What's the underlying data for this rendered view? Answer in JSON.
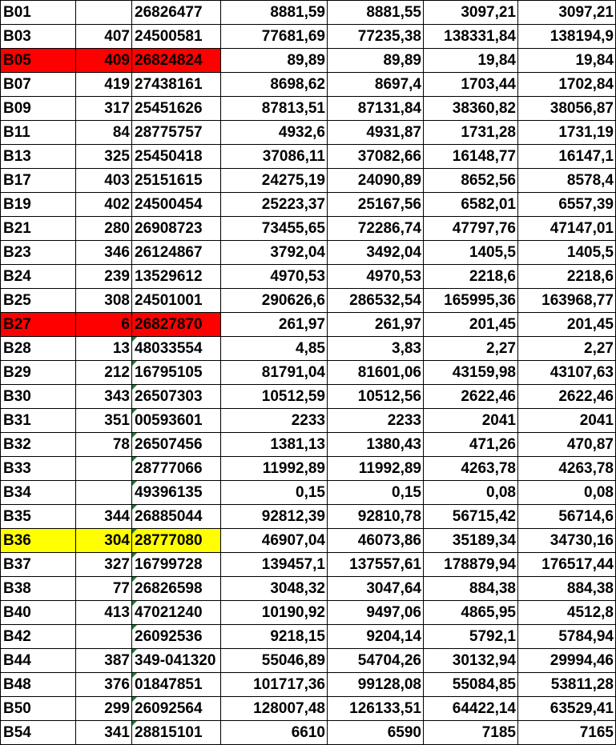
{
  "colors": {
    "red": "#ff0000",
    "yellow": "#ffff00",
    "error_indicator": "#1a7f2e"
  },
  "rows": [
    {
      "code": "B01",
      "num": "",
      "id": "26826477",
      "v1": "8881,59",
      "v2": "8881,55",
      "v3": "3097,21",
      "v4": "3097,21",
      "highlight": "",
      "flag": false
    },
    {
      "code": "B03",
      "num": "407",
      "id": "24500581",
      "v1": "77681,69",
      "v2": "77235,38",
      "v3": "138331,84",
      "v4": "138194,9",
      "highlight": "",
      "flag": false
    },
    {
      "code": "B05",
      "num": "409",
      "id": "26824824",
      "v1": "89,89",
      "v2": "89,89",
      "v3": "19,84",
      "v4": "19,84",
      "highlight": "red",
      "flag": false
    },
    {
      "code": "B07",
      "num": "419",
      "id": "27438161",
      "v1": "8698,62",
      "v2": "8697,4",
      "v3": "1703,44",
      "v4": "1702,84",
      "highlight": "",
      "flag": false
    },
    {
      "code": "B09",
      "num": "317",
      "id": "25451626",
      "v1": "87813,51",
      "v2": "87131,84",
      "v3": "38360,82",
      "v4": "38056,87",
      "highlight": "",
      "flag": false
    },
    {
      "code": "B11",
      "num": "84",
      "id": "28775757",
      "v1": "4932,6",
      "v2": "4931,87",
      "v3": "1731,28",
      "v4": "1731,19",
      "highlight": "",
      "flag": false
    },
    {
      "code": "B13",
      "num": "325",
      "id": "25450418",
      "v1": "37086,11",
      "v2": "37082,66",
      "v3": "16148,77",
      "v4": "16147,1",
      "highlight": "",
      "flag": false
    },
    {
      "code": "B17",
      "num": "403",
      "id": "25151615",
      "v1": "24275,19",
      "v2": "24090,89",
      "v3": "8652,56",
      "v4": "8578,4",
      "highlight": "",
      "flag": false
    },
    {
      "code": "B19",
      "num": "402",
      "id": "24500454",
      "v1": "25223,37",
      "v2": "25167,56",
      "v3": "6582,01",
      "v4": "6557,39",
      "highlight": "",
      "flag": false
    },
    {
      "code": "B21",
      "num": "280",
      "id": "26908723",
      "v1": "73455,65",
      "v2": "72286,74",
      "v3": "47797,76",
      "v4": "47147,01",
      "highlight": "",
      "flag": false
    },
    {
      "code": "B23",
      "num": "346",
      "id": "26124867",
      "v1": "3792,04",
      "v2": "3492,04",
      "v3": "1405,5",
      "v4": "1405,5",
      "highlight": "",
      "flag": false
    },
    {
      "code": "B24",
      "num": "239",
      "id": "13529612",
      "v1": "4970,53",
      "v2": "4970,53",
      "v3": "2218,6",
      "v4": "2218,6",
      "highlight": "",
      "flag": false
    },
    {
      "code": "B25",
      "num": "308",
      "id": "24501001",
      "v1": "290626,6",
      "v2": "286532,54",
      "v3": "165995,36",
      "v4": "163968,77",
      "highlight": "",
      "flag": false
    },
    {
      "code": "B27",
      "num": "6",
      "id": "26827870",
      "v1": "261,97",
      "v2": "261,97",
      "v3": "201,45",
      "v4": "201,45",
      "highlight": "red",
      "flag": false
    },
    {
      "code": "B28",
      "num": "13",
      "id": "48033554",
      "v1": "4,85",
      "v2": "3,83",
      "v3": "2,27",
      "v4": "2,27",
      "highlight": "",
      "flag": true
    },
    {
      "code": "B29",
      "num": "212",
      "id": "16795105",
      "v1": "81791,04",
      "v2": "81601,06",
      "v3": "43159,98",
      "v4": "43107,63",
      "highlight": "",
      "flag": true
    },
    {
      "code": "B30",
      "num": "343",
      "id": "26507303",
      "v1": "10512,59",
      "v2": "10512,56",
      "v3": "2622,46",
      "v4": "2622,46",
      "highlight": "",
      "flag": true
    },
    {
      "code": "B31",
      "num": "351",
      "id": "00593601",
      "v1": "2233",
      "v2": "2233",
      "v3": "2041",
      "v4": "2041",
      "highlight": "",
      "flag": true
    },
    {
      "code": "B32",
      "num": "78",
      "id": "26507456",
      "v1": "1381,13",
      "v2": "1380,43",
      "v3": "471,26",
      "v4": "470,87",
      "highlight": "",
      "flag": true
    },
    {
      "code": "B33",
      "num": "",
      "id": "28777066",
      "v1": "11992,89",
      "v2": "11992,89",
      "v3": "4263,78",
      "v4": "4263,78",
      "highlight": "",
      "flag": true
    },
    {
      "code": "B34",
      "num": "",
      "id": "49396135",
      "v1": "0,15",
      "v2": "0,15",
      "v3": "0,08",
      "v4": "0,08",
      "highlight": "",
      "flag": true
    },
    {
      "code": "B35",
      "num": "344",
      "id": "26885044",
      "v1": "92812,39",
      "v2": "92810,78",
      "v3": "56715,42",
      "v4": "56714,6",
      "highlight": "",
      "flag": true
    },
    {
      "code": "B36",
      "num": "304",
      "id": "28777080",
      "v1": "46907,04",
      "v2": "46073,86",
      "v3": "35189,34",
      "v4": "34730,16",
      "highlight": "yellow",
      "flag": true
    },
    {
      "code": "B37",
      "num": "327",
      "id": "16799728",
      "v1": "139457,1",
      "v2": "137557,61",
      "v3": "178879,94",
      "v4": "176517,44",
      "highlight": "",
      "flag": true
    },
    {
      "code": "B38",
      "num": "77",
      "id": "26826598",
      "v1": "3048,32",
      "v2": "3047,64",
      "v3": "884,38",
      "v4": "884,38",
      "highlight": "",
      "flag": true
    },
    {
      "code": "B40",
      "num": "413",
      "id": "47021240",
      "v1": "10190,92",
      "v2": "9497,06",
      "v3": "4865,95",
      "v4": "4512,8",
      "highlight": "",
      "flag": true
    },
    {
      "code": "B42",
      "num": "",
      "id": "26092536",
      "v1": "9218,15",
      "v2": "9204,14",
      "v3": "5792,1",
      "v4": "5784,94",
      "highlight": "",
      "flag": true
    },
    {
      "code": "B44",
      "num": "387",
      "id": "349-041320",
      "v1": "55046,89",
      "v2": "54704,26",
      "v3": "30132,94",
      "v4": "29994,46",
      "highlight": "",
      "flag": true
    },
    {
      "code": "B48",
      "num": "376",
      "id": "01847851",
      "v1": "101717,36",
      "v2": "99128,08",
      "v3": "55084,85",
      "v4": "53811,28",
      "highlight": "",
      "flag": true
    },
    {
      "code": "B50",
      "num": "299",
      "id": "26092564",
      "v1": "128007,48",
      "v2": "126133,51",
      "v3": "64422,14",
      "v4": "63529,41",
      "highlight": "",
      "flag": true
    },
    {
      "code": "B54",
      "num": "341",
      "id": "28815101",
      "v1": "6610",
      "v2": "6590",
      "v3": "7185",
      "v4": "7165",
      "highlight": "",
      "flag": true
    }
  ]
}
